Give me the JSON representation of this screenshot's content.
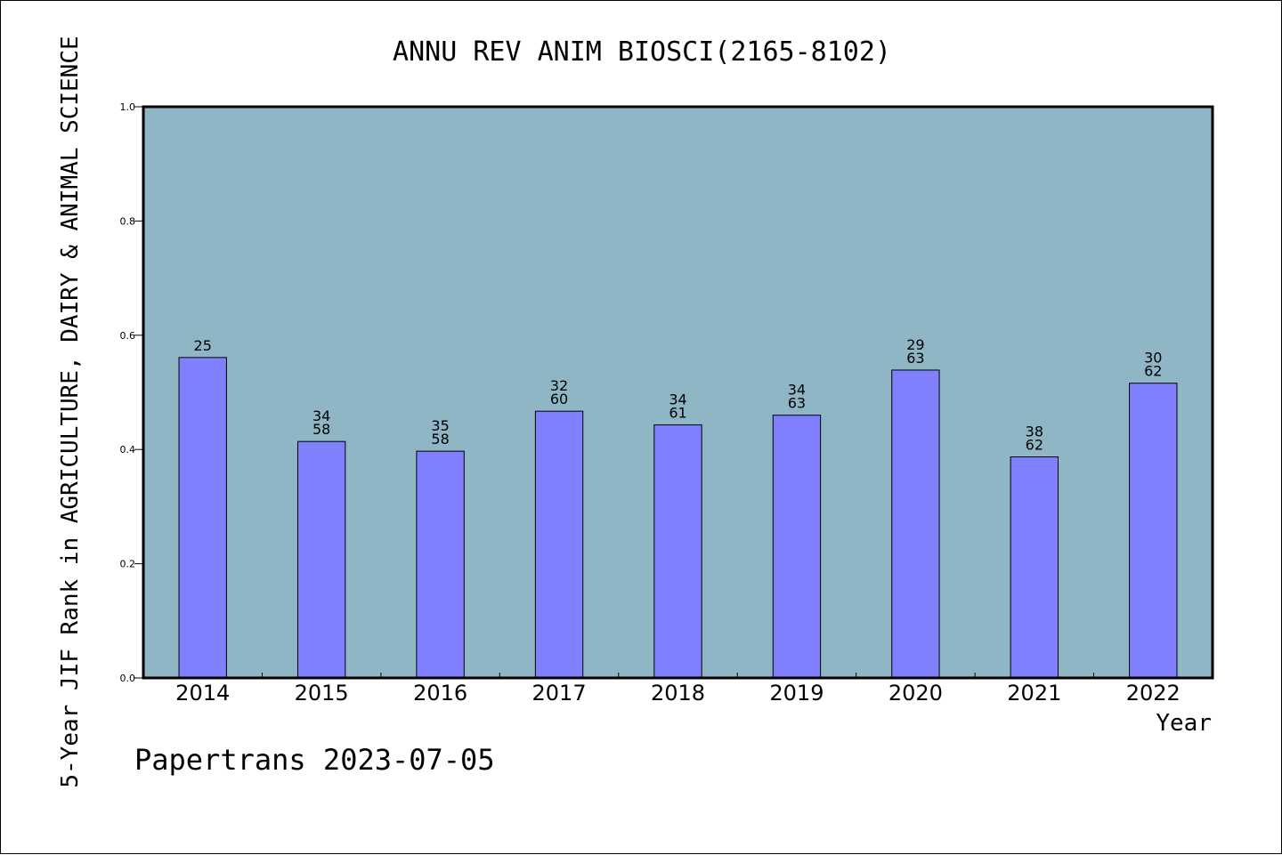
{
  "chart_data": {
    "type": "bar",
    "title": "ANNU REV ANIM BIOSCI(2165-8102)",
    "xlabel": "Year",
    "ylabel": "5-Year JIF Rank in AGRICULTURE, DAIRY & ANIMAL SCIENCE",
    "ylim": [
      0,
      1.0
    ],
    "yticks": [
      "0.0",
      "0.2",
      "0.4",
      "0.6",
      "0.8",
      "1.0"
    ],
    "grid": false,
    "categories": [
      "2014",
      "2015",
      "2016",
      "2017",
      "2018",
      "2019",
      "2020",
      "2021",
      "2022"
    ],
    "values": [
      0.561,
      0.414,
      0.397,
      0.467,
      0.443,
      0.46,
      0.539,
      0.387,
      0.516
    ],
    "bar_labels": [
      [
        "25"
      ],
      [
        "34",
        "58"
      ],
      [
        "35",
        "58"
      ],
      [
        "32",
        "60"
      ],
      [
        "34",
        "61"
      ],
      [
        "34",
        "63"
      ],
      [
        "29",
        "63"
      ],
      [
        "38",
        "62"
      ],
      [
        "30",
        "62"
      ]
    ],
    "footer": "Papertrans 2023-07-05",
    "colors": {
      "plot_background": "#8fb6c5",
      "bar_fill": "#8080ff",
      "bar_stroke": "#000000"
    }
  }
}
